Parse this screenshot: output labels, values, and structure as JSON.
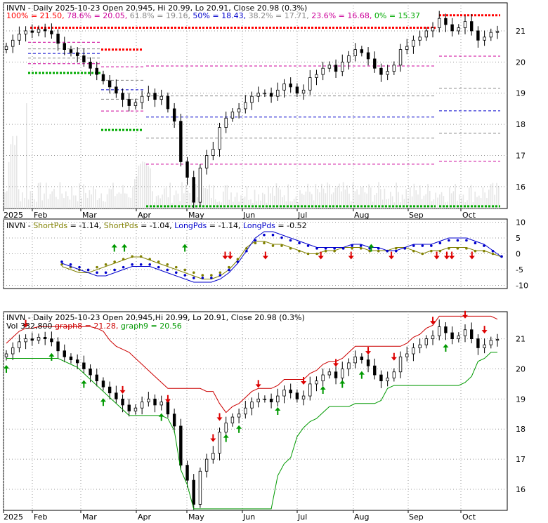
{
  "ticker": "INVN",
  "chart_data": [
    {
      "type": "candlestick",
      "panel": "price-fibonacci",
      "header": {
        "prefix": "INVN - Daily 2025-10-23 Open 20.945, Hi 20.99, Lo 20.91, Close 20.98 (0.3%)",
        "fib_text": [
          {
            "text": "100% = 21.50,",
            "color": "#ff0000"
          },
          {
            "text": "78.6% = 20.05,",
            "color": "#cc0099"
          },
          {
            "text": "61.8% = 19.16,",
            "color": "#888888"
          },
          {
            "text": "50% = 18.43,",
            "color": "#0000cc"
          },
          {
            "text": "38.2% = 17.71,",
            "color": "#888888"
          },
          {
            "text": "23.6% = 16.68,",
            "color": "#cc0099"
          },
          {
            "text": "0% = 15.37",
            "color": "#00aa00"
          }
        ]
      },
      "fib_levels": [
        {
          "pct": "100%",
          "value": 21.5,
          "color": "#ff0000"
        },
        {
          "pct": "78.6%",
          "value": 20.05,
          "color": "#cc0099"
        },
        {
          "pct": "61.8%",
          "value": 19.16,
          "color": "#888888"
        },
        {
          "pct": "50%",
          "value": 18.43,
          "color": "#0000cc"
        },
        {
          "pct": "38.2%",
          "value": 17.71,
          "color": "#888888"
        },
        {
          "pct": "23.6%",
          "value": 16.68,
          "color": "#cc0099"
        },
        {
          "pct": "0%",
          "value": 15.37,
          "color": "#00aa00"
        }
      ],
      "y_ticks": [
        16,
        17,
        18,
        19,
        20,
        21
      ],
      "ylim": [
        15.3,
        21.9
      ],
      "x_labels": [
        "2025",
        "Feb",
        "Mar",
        "Apr",
        "May",
        "Jun",
        "Jul",
        "Aug",
        "Sep",
        "Oct"
      ],
      "close_series": [
        20.5,
        20.7,
        20.9,
        21.0,
        20.95,
        21.05,
        21.0,
        20.9,
        20.6,
        20.4,
        20.3,
        20.2,
        20.0,
        19.8,
        19.6,
        19.4,
        19.2,
        19.0,
        18.8,
        18.6,
        18.7,
        18.9,
        19.0,
        18.8,
        18.9,
        18.5,
        18.1,
        16.8,
        16.3,
        15.5,
        16.6,
        17.0,
        17.2,
        17.9,
        18.2,
        18.4,
        18.5,
        18.7,
        18.9,
        19.0,
        19.0,
        18.9,
        19.1,
        19.3,
        19.2,
        19.0,
        19.1,
        19.5,
        19.6,
        19.8,
        19.9,
        19.7,
        20.0,
        20.2,
        20.4,
        20.3,
        20.1,
        19.8,
        19.6,
        19.7,
        19.9,
        20.4,
        20.5,
        20.7,
        20.8,
        21.0,
        21.1,
        21.4,
        21.2,
        21.0,
        21.1,
        21.3,
        21.0,
        20.7,
        20.8,
        20.95,
        20.98
      ],
      "volume_note": "volume bars in background"
    },
    {
      "type": "line",
      "panel": "pds-oscillator",
      "header": [
        {
          "text": "INVN - ",
          "color": "#000000"
        },
        {
          "text": "ShortPds",
          "color": "#808000"
        },
        {
          "text": " = -1.14, ",
          "color": "#000000"
        },
        {
          "text": "ShortPds",
          "color": "#808000"
        },
        {
          "text": " = -1.04, ",
          "color": "#000000"
        },
        {
          "text": "LongPds",
          "color": "#0000cc"
        },
        {
          "text": " = -1.14, ",
          "color": "#000000"
        },
        {
          "text": "LongPds",
          "color": "#0000cc"
        },
        {
          "text": " = -0.52",
          "color": "#000000"
        }
      ],
      "y_ticks": [
        -10,
        -5,
        0,
        5,
        10
      ],
      "ylim": [
        -11,
        11
      ],
      "series": [
        {
          "name": "ShortPds",
          "color": "#808000",
          "values": [
            -4,
            -5,
            -6,
            -6,
            -5,
            -4,
            -3,
            -2,
            -1,
            -1,
            -2,
            -3,
            -4,
            -5,
            -6,
            -7,
            -8,
            -8,
            -7,
            -5,
            -2,
            2,
            4,
            4,
            3,
            3,
            2,
            1,
            0,
            0,
            1,
            1,
            2,
            2,
            2,
            1,
            1,
            1,
            2,
            2,
            1,
            0,
            1,
            1,
            2,
            2,
            2,
            1,
            1,
            0,
            -1
          ]
        },
        {
          "name": "LongPds",
          "color": "#0000cc",
          "values": [
            -3,
            -4,
            -5,
            -6,
            -7,
            -7,
            -6,
            -5,
            -4,
            -4,
            -4,
            -5,
            -6,
            -7,
            -8,
            -9,
            -9,
            -9,
            -8,
            -6,
            -3,
            1,
            5,
            7,
            7,
            6,
            5,
            4,
            3,
            2,
            2,
            2,
            2,
            3,
            3,
            2,
            2,
            1,
            1,
            2,
            3,
            3,
            3,
            4,
            5,
            5,
            5,
            4,
            3,
            1,
            -1
          ]
        }
      ],
      "arrow_marks": {
        "up_positions": [
          0.22,
          0.24,
          0.36,
          0.73
        ],
        "down_positions": [
          0.44,
          0.45,
          0.52,
          0.63,
          0.69,
          0.77,
          0.86,
          0.88,
          0.89,
          0.93
        ]
      }
    },
    {
      "type": "candlestick",
      "panel": "price-stops",
      "header": {
        "line1": "INVN - Daily 2025-10-23 Open 20.945,Hi 20.99, Lo 20.91, Close 20.98 (0.3%)",
        "vol_prefix": "Vol 332,800 ",
        "graph8": {
          "text": "graph8 = 21.28,",
          "color": "#cc0000"
        },
        "graph9": {
          "text": "graph9 = 20.56",
          "color": "#009900"
        }
      },
      "y_ticks": [
        16,
        17,
        18,
        19,
        20,
        21
      ],
      "ylim": [
        15.3,
        21.9
      ],
      "x_labels": [
        "2025",
        "Feb",
        "Mar",
        "Apr",
        "May",
        "Jun",
        "Jul",
        "Aug",
        "Sep",
        "Oct"
      ],
      "series": [
        {
          "name": "graph8",
          "color": "#cc0000"
        },
        {
          "name": "graph9",
          "color": "#009900"
        }
      ]
    }
  ]
}
